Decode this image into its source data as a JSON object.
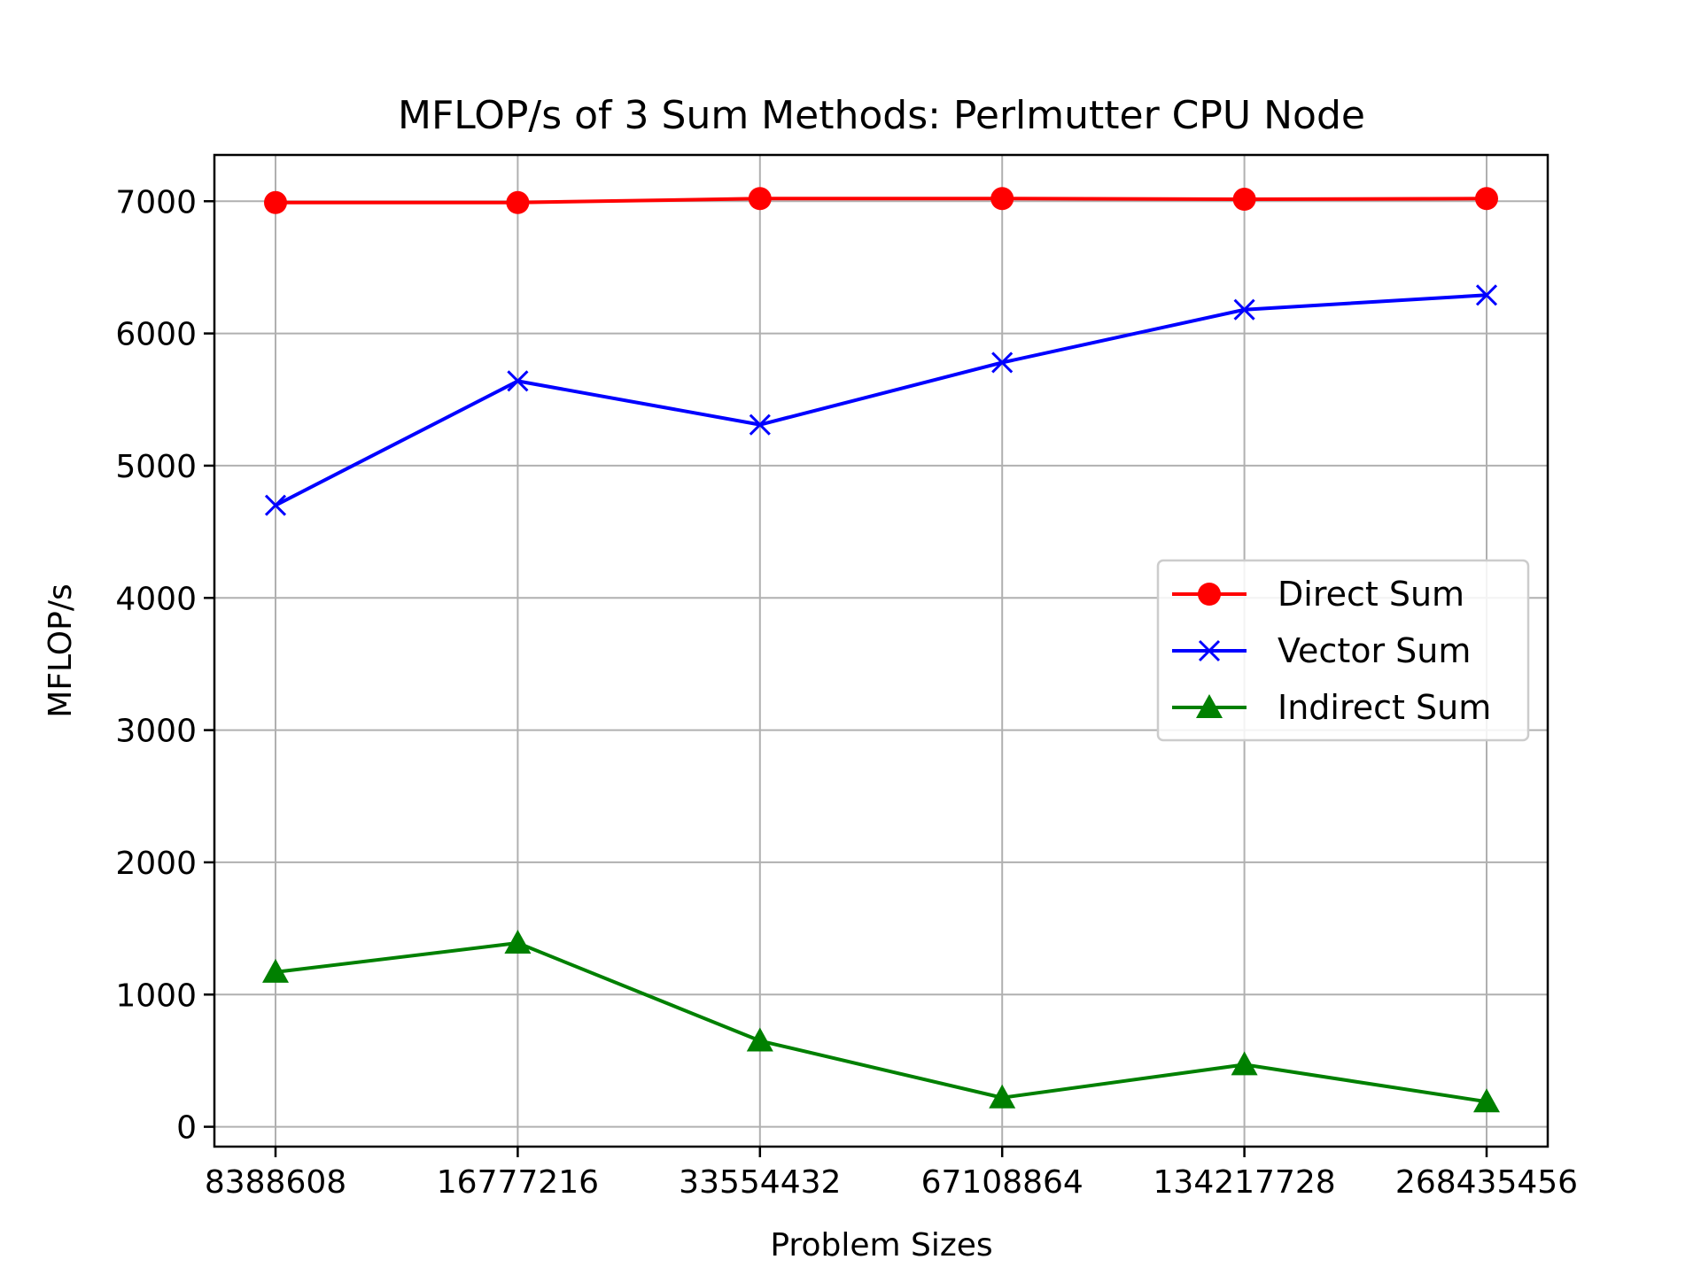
{
  "chart_data": {
    "type": "line",
    "title": "MFLOP/s of 3 Sum Methods: Perlmutter CPU Node",
    "xlabel": "Problem Sizes",
    "ylabel": "MFLOP/s",
    "categories": [
      "8388608",
      "16777216",
      "33554432",
      "67108864",
      "134217728",
      "268435456"
    ],
    "yticks": [
      "0",
      "1000",
      "2000",
      "3000",
      "4000",
      "5000",
      "6000",
      "7000"
    ],
    "ylim": [
      -150,
      7350
    ],
    "grid": true,
    "legend_position": "center-right",
    "series": [
      {
        "name": "Direct Sum",
        "color": "#ff0000",
        "marker": "circle",
        "values": [
          6990,
          6990,
          7020,
          7020,
          7015,
          7020
        ]
      },
      {
        "name": "Vector Sum",
        "color": "#0000ff",
        "marker": "x",
        "values": [
          4700,
          5640,
          5310,
          5780,
          6180,
          6290
        ]
      },
      {
        "name": "Indirect Sum",
        "color": "#008000",
        "marker": "triangle",
        "values": [
          1170,
          1390,
          650,
          220,
          470,
          190
        ]
      }
    ]
  }
}
